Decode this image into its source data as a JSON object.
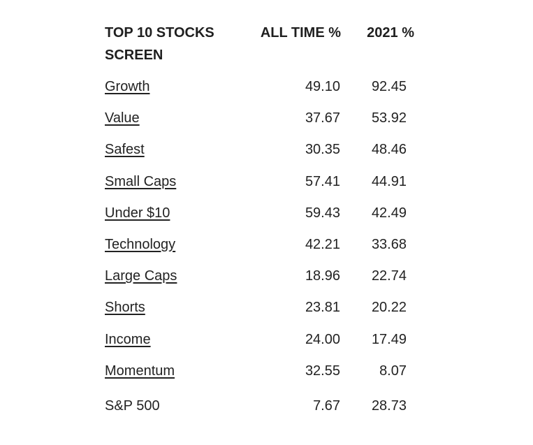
{
  "table": {
    "headers": {
      "name": "TOP 10 STOCKS SCREEN",
      "all_time": "ALL TIME %",
      "year": "2021 %"
    },
    "rows": [
      {
        "name": "Growth",
        "all_time": "49.10",
        "year": "92.45"
      },
      {
        "name": "Value",
        "all_time": "37.67",
        "year": "53.92"
      },
      {
        "name": "Safest",
        "all_time": "30.35",
        "year": "48.46"
      },
      {
        "name": "Small Caps",
        "all_time": "57.41",
        "year": "44.91"
      },
      {
        "name": "Under $10",
        "all_time": "59.43",
        "year": "42.49"
      },
      {
        "name": "Technology",
        "all_time": "42.21",
        "year": "33.68"
      },
      {
        "name": "Large Caps",
        "all_time": "18.96",
        "year": "22.74"
      },
      {
        "name": "Shorts",
        "all_time": "23.81",
        "year": "20.22"
      },
      {
        "name": "Income",
        "all_time": "24.00",
        "year": "17.49"
      },
      {
        "name": "Momentum",
        "all_time": "32.55",
        "year": "8.07"
      },
      {
        "name": "S&P 500",
        "all_time": "7.67",
        "year": "28.73"
      }
    ]
  }
}
